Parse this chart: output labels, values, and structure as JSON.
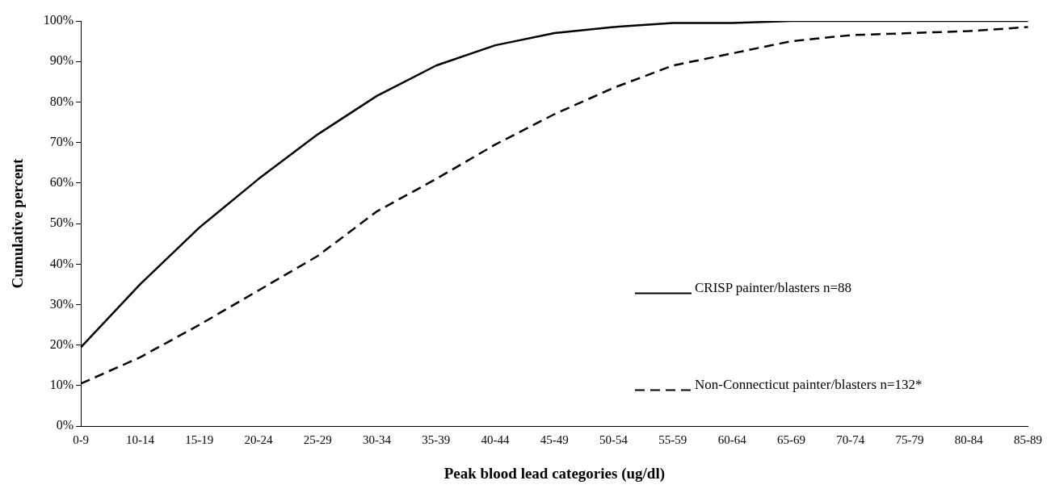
{
  "chart_data": {
    "type": "line",
    "xlabel": "Peak blood lead categories (ug/dl)",
    "ylabel": "Cumulative percent",
    "categories": [
      "0-9",
      "10-14",
      "15-19",
      "20-24",
      "25-29",
      "30-34",
      "35-39",
      "40-44",
      "45-49",
      "50-54",
      "55-59",
      "60-64",
      "65-69",
      "70-74",
      "75-79",
      "80-84",
      "85-89"
    ],
    "series": [
      {
        "name": "CRISP painter/blasters n=88",
        "color": "#000000",
        "line_style": "solid",
        "values": [
          19.5,
          35,
          49,
          61,
          72,
          81.5,
          89,
          94,
          97,
          98.5,
          99.5,
          99.5,
          100,
          100,
          100,
          100,
          100
        ]
      },
      {
        "name": "Non-Connecticut painter/blasters n=132*",
        "color": "#000000",
        "line_style": "dashed",
        "values": [
          10.5,
          17,
          25,
          33.5,
          42,
          53,
          61,
          69.5,
          77,
          83.5,
          89,
          92,
          95,
          96.5,
          97,
          97.5,
          98.5
        ]
      }
    ],
    "ylim": [
      0,
      100
    ],
    "yticks": [
      {
        "value": 0,
        "label": "0%"
      },
      {
        "value": 10,
        "label": "10%"
      },
      {
        "value": 20,
        "label": "20%"
      },
      {
        "value": 30,
        "label": "30%"
      },
      {
        "value": 40,
        "label": "40%"
      },
      {
        "value": 50,
        "label": "50%"
      },
      {
        "value": 60,
        "label": "60%"
      },
      {
        "value": 70,
        "label": "70%"
      },
      {
        "value": 80,
        "label": "80%"
      },
      {
        "value": 90,
        "label": "90%"
      },
      {
        "value": 100,
        "label": "100%"
      }
    ],
    "grid": false,
    "legend": "right",
    "marker": "none"
  }
}
